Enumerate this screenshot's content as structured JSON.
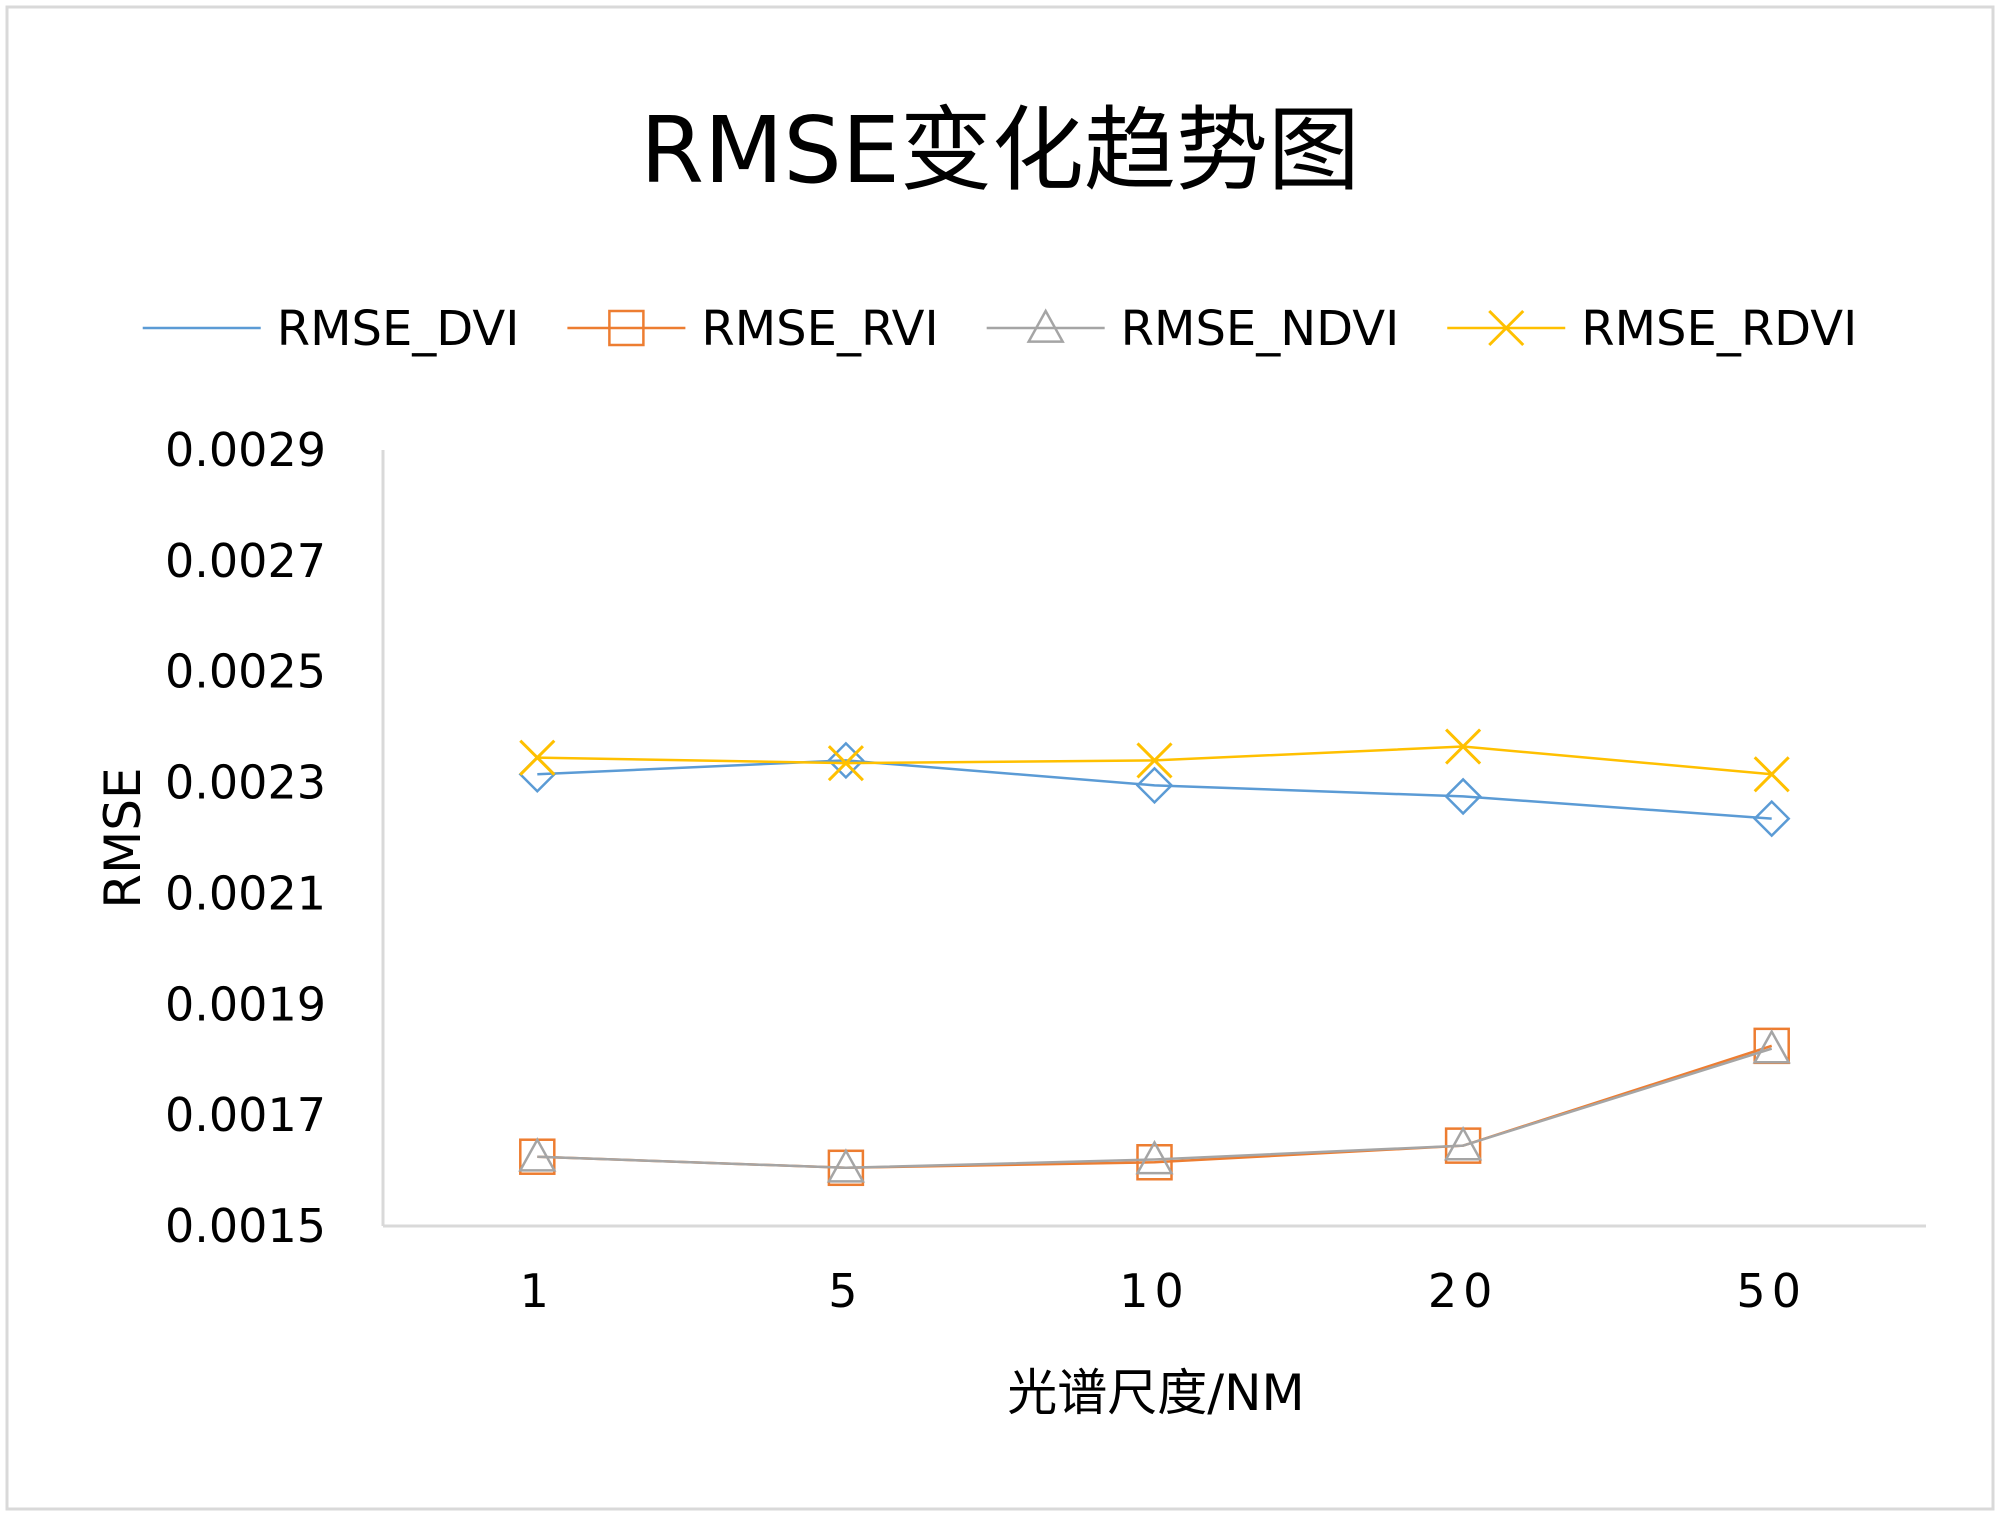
{
  "chart_data": {
    "type": "line",
    "title": "RMSE变化趋势图",
    "xlabel": "光谱尺度/NM",
    "ylabel": "RMSE",
    "categories": [
      "1",
      "5",
      "10",
      "20",
      "50"
    ],
    "ylim": [
      0.0015,
      0.0029
    ],
    "yticks": [
      "0.0015",
      "0.0017",
      "0.0019",
      "0.0021",
      "0.0023",
      "0.0025",
      "0.0027",
      "0.0029"
    ],
    "grid": false,
    "legend_position": "top",
    "series": [
      {
        "name": "RMSE_DVI",
        "color": "#5b9bd5",
        "marker": "diamond",
        "values": [
          0.002315,
          0.00234,
          0.002295,
          0.002275,
          0.002235
        ]
      },
      {
        "name": "RMSE_RVI",
        "color": "#ed7d31",
        "marker": "square",
        "values": [
          0.001625,
          0.001605,
          0.001615,
          0.001645,
          0.001825
        ]
      },
      {
        "name": "RMSE_NDVI",
        "color": "#a5a5a5",
        "marker": "triangle",
        "values": [
          0.001625,
          0.001605,
          0.00162,
          0.001645,
          0.00182
        ]
      },
      {
        "name": "RMSE_RDVI",
        "color": "#ffc000",
        "marker": "x",
        "values": [
          0.002345,
          0.002335,
          0.00234,
          0.002365,
          0.002315
        ]
      }
    ]
  }
}
